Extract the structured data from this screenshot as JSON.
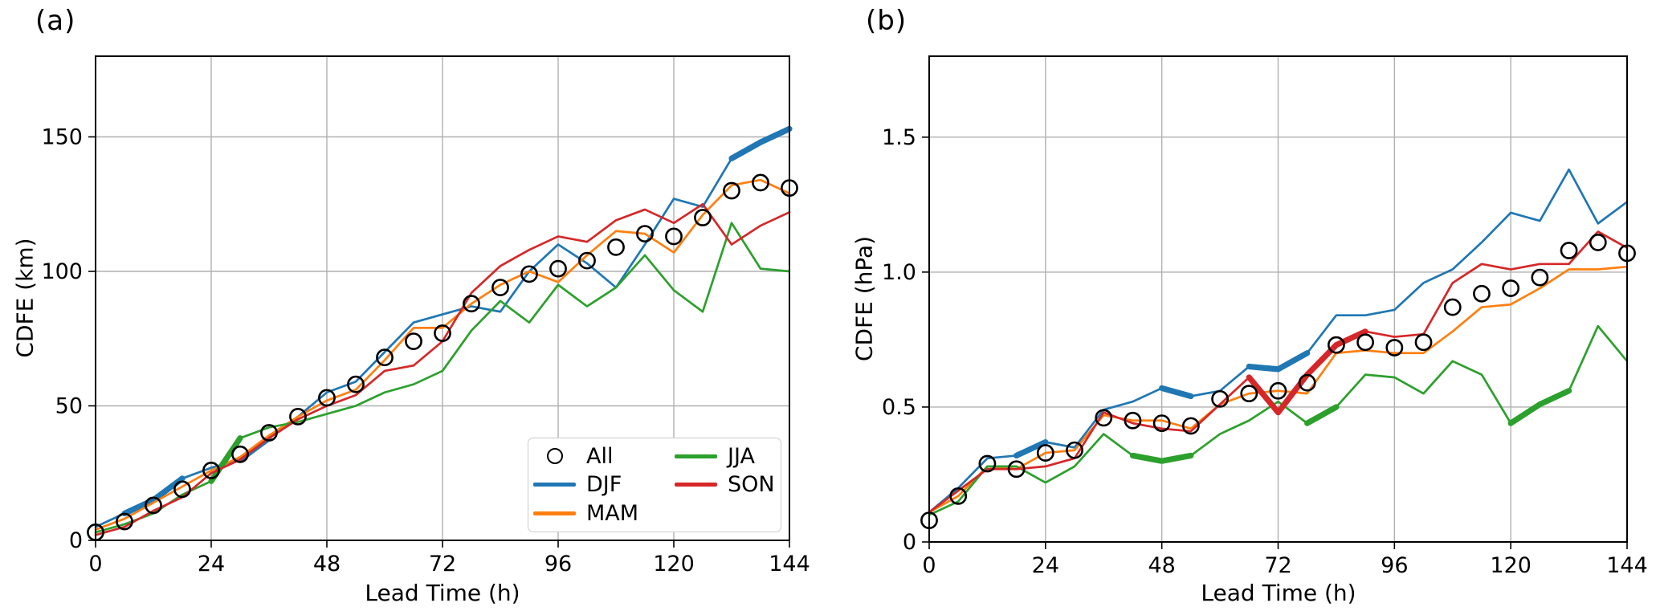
{
  "page": {
    "background": "#ffffff",
    "grid_color": "#b0b0b0",
    "spine_color": "#000000"
  },
  "panels": [
    {
      "key": "a",
      "title": "(a)",
      "xlabel": "Lead Time (h)",
      "ylabel": "CDFE (km)"
    },
    {
      "key": "b",
      "title": "(b)",
      "xlabel": "Lead Time (h)",
      "ylabel": "CDFE (hPa)"
    }
  ],
  "legend": {
    "items": [
      {
        "label": "All",
        "marker": "open-circle",
        "color": "#000000"
      },
      {
        "label": "DJF",
        "marker": "line",
        "color": "#1f77b4"
      },
      {
        "label": "MAM",
        "marker": "line",
        "color": "#ff7f0e"
      },
      {
        "label": "JJA",
        "marker": "line",
        "color": "#2ca02c"
      },
      {
        "label": "SON",
        "marker": "line",
        "color": "#d62728"
      }
    ]
  },
  "chart_data": [
    {
      "type": "line",
      "panel": "(a)",
      "title": "(a)",
      "xlabel": "Lead Time (h)",
      "ylabel": "CDFE (km)",
      "x": [
        0,
        6,
        12,
        18,
        24,
        30,
        36,
        42,
        48,
        54,
        60,
        66,
        72,
        78,
        84,
        90,
        96,
        102,
        108,
        114,
        120,
        126,
        132,
        138,
        144
      ],
      "xlim": [
        0,
        144
      ],
      "ylim": [
        0,
        180
      ],
      "xticks": [
        0,
        24,
        48,
        72,
        96,
        120,
        144
      ],
      "xticklabels": [
        "0",
        "24",
        "48",
        "72",
        "96",
        "120",
        "144"
      ],
      "yticks": [
        0,
        50,
        100,
        150
      ],
      "yticklabels": [
        "0",
        "50",
        "100",
        "150"
      ],
      "grid": true,
      "legend_position": "lower-right-inside",
      "series": [
        {
          "name": "All",
          "type": "scatter",
          "marker": "open-circle",
          "color": "#000000",
          "values": [
            3,
            7,
            13,
            19,
            26,
            32,
            40,
            46,
            53,
            58,
            68,
            74,
            77,
            88,
            94,
            99,
            101,
            104,
            109,
            114,
            113,
            120,
            130,
            133,
            131
          ]
        },
        {
          "name": "DJF",
          "type": "line",
          "color": "#1f77b4",
          "values": [
            5,
            10,
            15,
            23,
            27,
            30,
            38,
            46,
            55,
            59,
            70,
            81,
            84,
            87,
            85,
            100,
            110,
            103,
            94,
            110,
            127,
            124,
            142,
            148,
            153
          ],
          "bold_segments": [
            [
              6,
              18
            ],
            [
              30,
              36
            ],
            [
              132,
              144
            ]
          ]
        },
        {
          "name": "MAM",
          "type": "line",
          "color": "#ff7f0e",
          "values": [
            4,
            8,
            14,
            20,
            26,
            31,
            39,
            46,
            52,
            56,
            67,
            79,
            79,
            88,
            95,
            100,
            96,
            106,
            115,
            114,
            107,
            121,
            132,
            134,
            129
          ],
          "bold_segments": []
        },
        {
          "name": "JJA",
          "type": "line",
          "color": "#2ca02c",
          "values": [
            3,
            6,
            10,
            17,
            22,
            38,
            42,
            44,
            47,
            50,
            55,
            58,
            63,
            78,
            89,
            81,
            95,
            87,
            94,
            106,
            93,
            85,
            118,
            101,
            100
          ],
          "bold_segments": [
            [
              24,
              30
            ]
          ]
        },
        {
          "name": "SON",
          "type": "line",
          "color": "#d62728",
          "values": [
            2,
            5,
            11,
            16,
            25,
            30,
            38,
            45,
            50,
            54,
            63,
            65,
            74,
            92,
            102,
            108,
            113,
            111,
            119,
            123,
            118,
            125,
            110,
            117,
            122
          ],
          "bold_segments": []
        }
      ]
    },
    {
      "type": "line",
      "panel": "(b)",
      "title": "(b)",
      "xlabel": "Lead Time (h)",
      "ylabel": "CDFE (hPa)",
      "x": [
        0,
        6,
        12,
        18,
        24,
        30,
        36,
        42,
        48,
        54,
        60,
        66,
        72,
        78,
        84,
        90,
        96,
        102,
        108,
        114,
        120,
        126,
        132,
        138,
        144
      ],
      "xlim": [
        0,
        144
      ],
      "ylim": [
        0,
        1.8
      ],
      "xticks": [
        0,
        24,
        48,
        72,
        96,
        120,
        144
      ],
      "xticklabels": [
        "0",
        "24",
        "48",
        "72",
        "96",
        "120",
        "144"
      ],
      "yticks": [
        0,
        0.5,
        1.0,
        1.5
      ],
      "yticklabels": [
        "0",
        "0.5",
        "1.0",
        "1.5"
      ],
      "grid": true,
      "legend_position": "none",
      "series": [
        {
          "name": "All",
          "type": "scatter",
          "marker": "open-circle",
          "color": "#000000",
          "values": [
            0.08,
            0.17,
            0.29,
            0.27,
            0.33,
            0.34,
            0.46,
            0.45,
            0.44,
            0.43,
            0.53,
            0.55,
            0.56,
            0.59,
            0.73,
            0.74,
            0.72,
            0.74,
            0.87,
            0.92,
            0.94,
            0.98,
            1.08,
            1.11,
            1.07
          ]
        },
        {
          "name": "DJF",
          "type": "line",
          "color": "#1f77b4",
          "values": [
            0.11,
            0.2,
            0.31,
            0.32,
            0.37,
            0.35,
            0.49,
            0.52,
            0.57,
            0.54,
            0.56,
            0.65,
            0.64,
            0.7,
            0.84,
            0.84,
            0.86,
            0.96,
            1.01,
            1.11,
            1.22,
            1.19,
            1.38,
            1.18,
            1.26
          ],
          "bold_segments": [
            [
              18,
              24
            ],
            [
              48,
              54
            ],
            [
              66,
              78
            ]
          ]
        },
        {
          "name": "MAM",
          "type": "line",
          "color": "#ff7f0e",
          "values": [
            0.11,
            0.17,
            0.28,
            0.27,
            0.33,
            0.34,
            0.47,
            0.45,
            0.45,
            0.42,
            0.51,
            0.55,
            0.56,
            0.55,
            0.7,
            0.71,
            0.7,
            0.7,
            0.78,
            0.87,
            0.88,
            0.94,
            1.01,
            1.01,
            1.02
          ],
          "bold_segments": []
        },
        {
          "name": "JJA",
          "type": "line",
          "color": "#2ca02c",
          "values": [
            0.1,
            0.15,
            0.28,
            0.28,
            0.22,
            0.28,
            0.4,
            0.32,
            0.3,
            0.32,
            0.4,
            0.45,
            0.52,
            0.44,
            0.5,
            0.62,
            0.61,
            0.55,
            0.67,
            0.62,
            0.44,
            0.51,
            0.56,
            0.8,
            0.67
          ],
          "bold_segments": [
            [
              42,
              54
            ],
            [
              78,
              84
            ],
            [
              120,
              132
            ]
          ]
        },
        {
          "name": "SON",
          "type": "line",
          "color": "#d62728",
          "values": [
            0.11,
            0.19,
            0.27,
            0.27,
            0.28,
            0.31,
            0.48,
            0.44,
            0.42,
            0.41,
            0.51,
            0.61,
            0.48,
            0.62,
            0.73,
            0.78,
            0.76,
            0.77,
            0.96,
            1.03,
            1.01,
            1.03,
            1.03,
            1.15,
            1.09
          ],
          "bold_segments": [
            [
              66,
              90
            ]
          ]
        }
      ]
    }
  ]
}
